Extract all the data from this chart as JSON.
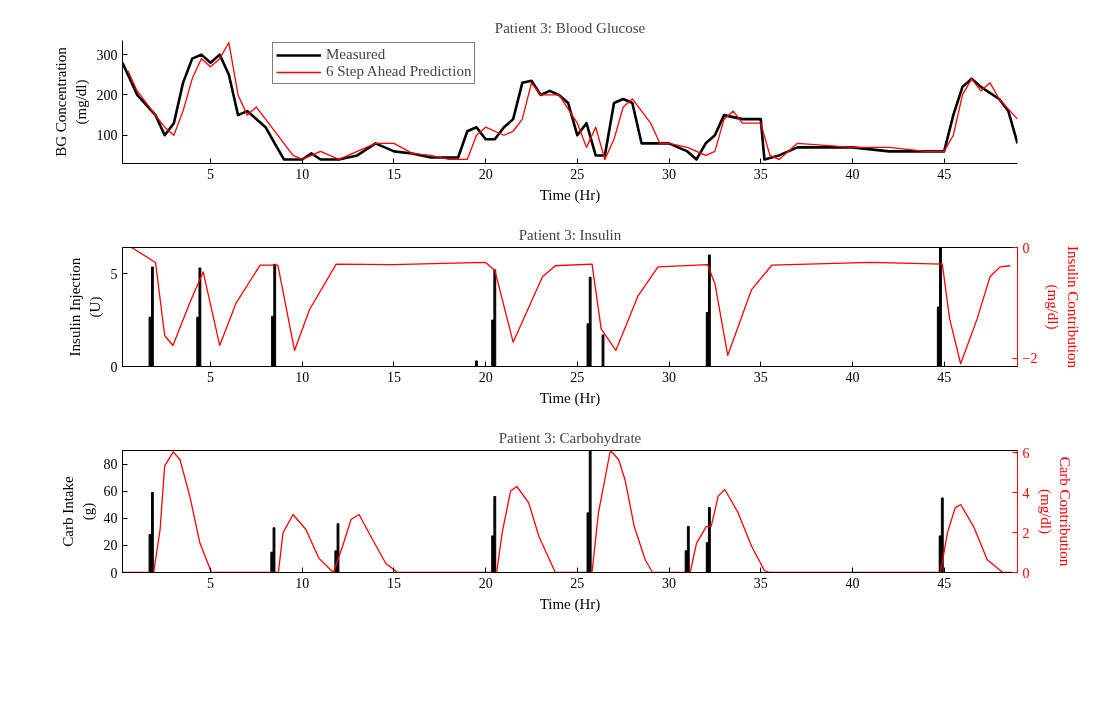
{
  "chart_data": [
    {
      "type": "line",
      "title": "Patient 3: Blood Glucose",
      "xlabel": "Time (Hr)",
      "ylabel": "BG Concentration\n(mg/dl)",
      "xlim": [
        0.2,
        49
      ],
      "ylim": [
        30,
        335
      ],
      "xticks": [
        5,
        10,
        15,
        20,
        25,
        30,
        35,
        40,
        45
      ],
      "yticks": [
        100,
        200,
        300
      ],
      "grid": false,
      "legend": "top",
      "series": [
        {
          "name": "Measured",
          "color": "#000000",
          "x": [
            0.2,
            1,
            2,
            2.5,
            3,
            3.5,
            4,
            4.5,
            5,
            5.5,
            6,
            6.5,
            7,
            8,
            8.5,
            9,
            10,
            10.5,
            11,
            12,
            13,
            14,
            15,
            16,
            17,
            18.5,
            19,
            19.5,
            20,
            20.5,
            21,
            21.5,
            22,
            22.5,
            23,
            23.5,
            24,
            24.5,
            25,
            25.5,
            26,
            26.5,
            27,
            27.5,
            28,
            28.5,
            29,
            30,
            30.5,
            31,
            31.5,
            32,
            32.5,
            33,
            34,
            35,
            35.2,
            36,
            37,
            38,
            40,
            42,
            43,
            44,
            45,
            45.5,
            46,
            46.5,
            47,
            48,
            48.5,
            49
          ],
          "values": [
            280,
            200,
            150,
            100,
            130,
            230,
            290,
            300,
            280,
            300,
            250,
            150,
            160,
            120,
            80,
            40,
            40,
            55,
            40,
            40,
            50,
            80,
            60,
            55,
            45,
            45,
            110,
            120,
            90,
            90,
            120,
            140,
            230,
            235,
            200,
            210,
            200,
            180,
            100,
            130,
            50,
            50,
            180,
            190,
            180,
            80,
            80,
            80,
            70,
            60,
            40,
            80,
            100,
            150,
            140,
            140,
            40,
            50,
            70,
            70,
            70,
            60,
            60,
            60,
            60,
            150,
            220,
            240,
            220,
            190,
            160,
            80
          ]
        },
        {
          "name": "6 Step Ahead Prediction",
          "color": "#ff0000",
          "x": [
            0.5,
            1,
            2,
            2.5,
            3,
            3.5,
            4,
            4.5,
            5,
            5.5,
            6,
            6.5,
            7,
            7.5,
            8,
            9,
            9.5,
            10,
            11,
            12,
            13,
            14,
            15,
            16,
            17,
            18,
            19,
            19.5,
            20,
            21,
            21.5,
            22,
            22.5,
            23,
            24,
            25,
            25.5,
            26,
            26.5,
            27,
            27.5,
            28,
            29,
            29.5,
            30,
            31,
            32,
            32.5,
            33,
            33.5,
            34,
            35,
            35.5,
            36,
            37,
            40,
            42,
            44,
            45,
            45.5,
            46,
            46.5,
            47,
            47.5,
            48,
            49
          ],
          "values": [
            260,
            210,
            150,
            120,
            100,
            160,
            240,
            290,
            270,
            290,
            330,
            200,
            150,
            170,
            140,
            80,
            50,
            40,
            60,
            40,
            60,
            80,
            80,
            55,
            50,
            40,
            40,
            100,
            120,
            100,
            110,
            140,
            230,
            200,
            200,
            130,
            70,
            120,
            40,
            90,
            170,
            190,
            130,
            80,
            80,
            70,
            50,
            60,
            140,
            160,
            130,
            130,
            50,
            40,
            80,
            70,
            70,
            60,
            60,
            100,
            200,
            240,
            210,
            230,
            190,
            140
          ]
        }
      ]
    },
    {
      "type": "bar",
      "title": "Patient 3: Insulin",
      "xlabel": "Time (Hr)",
      "ylabel": "Insulin Injection\n(U)",
      "y2label": "Insulin Contribution\n(mg/dl)",
      "xlim": [
        0.2,
        49
      ],
      "ylim": [
        0,
        6.4
      ],
      "y2lim": [
        -2.15,
        0
      ],
      "xticks": [
        5,
        10,
        15,
        20,
        25,
        30,
        35,
        40,
        45
      ],
      "yticks": [
        0,
        5
      ],
      "y2ticks": [
        0,
        -2
      ],
      "grid": false,
      "series": [
        {
          "type": "bar",
          "color": "#000000",
          "x": [
            1.7,
            1.83,
            4.3,
            4.42,
            8.38,
            8.5,
            19.5,
            20.38,
            20.5,
            25.58,
            25.7,
            26.4,
            32.08,
            32.2,
            44.68,
            44.8
          ],
          "values": [
            2.65,
            5.35,
            2.65,
            5.3,
            2.7,
            5.5,
            0.3,
            2.5,
            5.2,
            2.3,
            4.8,
            1.7,
            2.9,
            6.0,
            3.2,
            6.4
          ]
        },
        {
          "type": "line",
          "axis": "y2",
          "color": "#ff0000",
          "x": [
            0.7,
            2.0,
            2.5,
            2.95,
            3.87,
            4.6,
            5.5,
            6.4,
            7.7,
            8.67,
            9.58,
            10.4,
            11.85,
            14.9,
            20,
            20.5,
            21.5,
            23.1,
            23.8,
            25.8,
            26.3,
            27.1,
            28.3,
            29.4,
            32.1,
            32.5,
            33.2,
            34.5,
            35.6,
            41,
            44.9,
            45.3,
            45.9,
            46.8,
            47.5,
            48.05,
            48.6
          ],
          "values": [
            0,
            -0.27,
            -1.59,
            -1.77,
            -1.0,
            -0.44,
            -1.77,
            -1.0,
            -0.32,
            -0.32,
            -1.86,
            -1.12,
            -0.3,
            -0.31,
            -0.27,
            -0.41,
            -1.71,
            -0.53,
            -0.33,
            -0.3,
            -1.47,
            -1.86,
            -0.88,
            -0.35,
            -0.31,
            -0.65,
            -1.95,
            -0.76,
            -0.32,
            -0.27,
            -0.3,
            -1.29,
            -2.1,
            -1.29,
            -0.53,
            -0.35,
            -0.33
          ]
        }
      ]
    },
    {
      "type": "bar",
      "title": "Patient 3: Carbohydrate",
      "xlabel": "Time (Hr)",
      "ylabel": "Carb Intake\n(g)",
      "y2label": "Carb Contribution\n(mg/dl)",
      "xlim": [
        0.2,
        49
      ],
      "ylim": [
        0,
        90
      ],
      "y2lim": [
        0,
        6.1
      ],
      "xticks": [
        5,
        10,
        15,
        20,
        25,
        30,
        35,
        40,
        45
      ],
      "yticks": [
        0,
        20,
        40,
        60,
        80
      ],
      "y2ticks": [
        0,
        2,
        4,
        6
      ],
      "grid": false,
      "series": [
        {
          "type": "bar",
          "color": "#000000",
          "x": [
            1.7,
            1.83,
            8.34,
            8.46,
            11.83,
            11.95,
            20.38,
            20.5,
            25.58,
            25.7,
            30.93,
            31.05,
            32.08,
            32.2,
            44.78,
            44.9
          ],
          "values": [
            28,
            59,
            15,
            33,
            16,
            36,
            27,
            56,
            44,
            90,
            16,
            34,
            22,
            48,
            27,
            55
          ]
        },
        {
          "type": "line",
          "axis": "y2",
          "color": "#ff0000",
          "x": [
            0.2,
            1.9,
            2.25,
            2.5,
            2.97,
            3.33,
            3.87,
            4.42,
            5.05,
            8.7,
            8.95,
            9.5,
            10.2,
            10.9,
            11.7,
            12.2,
            12.66,
            13.1,
            13.84,
            14.56,
            15.2,
            20.6,
            20.9,
            21.36,
            21.7,
            22.35,
            22.9,
            23.8,
            25.8,
            26.15,
            26.8,
            27.25,
            27.6,
            28.1,
            28.7,
            29.1,
            31.15,
            31.5,
            32.04,
            32.3,
            32.68,
            33.04,
            33.77,
            34.5,
            35.2,
            35.5,
            44.8,
            45.18,
            45.6,
            45.9,
            46.6,
            47.35,
            48.2,
            48.7
          ],
          "values": [
            0,
            0,
            2.15,
            5.33,
            6.03,
            5.65,
            3.82,
            1.47,
            0,
            0,
            1.98,
            2.9,
            2.15,
            0.72,
            0,
            1.31,
            2.65,
            2.9,
            1.64,
            0.45,
            0,
            0,
            1.98,
            4.07,
            4.3,
            3.48,
            1.81,
            0,
            0,
            2.98,
            6.1,
            5.65,
            4.64,
            2.31,
            0.64,
            0,
            0,
            1.47,
            2.31,
            2.31,
            3.82,
            4.15,
            2.98,
            1.31,
            0.1,
            0,
            0,
            1.98,
            3.23,
            3.4,
            2.31,
            0.64,
            0,
            0
          ]
        }
      ]
    }
  ]
}
